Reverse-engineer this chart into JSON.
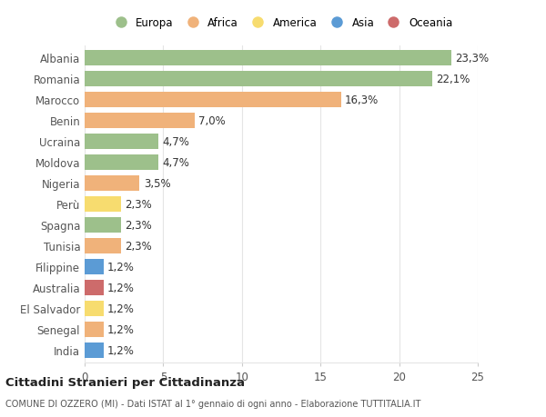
{
  "countries": [
    "Albania",
    "Romania",
    "Marocco",
    "Benin",
    "Ucraina",
    "Moldova",
    "Nigeria",
    "Perù",
    "Spagna",
    "Tunisia",
    "Filippine",
    "Australia",
    "El Salvador",
    "Senegal",
    "India"
  ],
  "values": [
    23.3,
    22.1,
    16.3,
    7.0,
    4.7,
    4.7,
    3.5,
    2.3,
    2.3,
    2.3,
    1.2,
    1.2,
    1.2,
    1.2,
    1.2
  ],
  "labels": [
    "23,3%",
    "22,1%",
    "16,3%",
    "7,0%",
    "4,7%",
    "4,7%",
    "3,5%",
    "2,3%",
    "2,3%",
    "2,3%",
    "1,2%",
    "1,2%",
    "1,2%",
    "1,2%",
    "1,2%"
  ],
  "continents": [
    "Europa",
    "Europa",
    "Africa",
    "Africa",
    "Europa",
    "Europa",
    "Africa",
    "America",
    "Europa",
    "Africa",
    "Asia",
    "Oceania",
    "America",
    "Africa",
    "Asia"
  ],
  "colors": {
    "Europa": "#9dc08b",
    "Africa": "#f0b27a",
    "America": "#f7dc6f",
    "Asia": "#5b9bd5",
    "Oceania": "#cd6b6b"
  },
  "legend_items": [
    "Europa",
    "Africa",
    "America",
    "Asia",
    "Oceania"
  ],
  "legend_colors": [
    "#9dc08b",
    "#f0b27a",
    "#f7dc6f",
    "#5b9bd5",
    "#cd6b6b"
  ],
  "title": "Cittadini Stranieri per Cittadinanza",
  "subtitle": "COMUNE DI OZZERO (MI) - Dati ISTAT al 1° gennaio di ogni anno - Elaborazione TUTTITALIA.IT",
  "xlim": [
    0,
    25
  ],
  "xticks": [
    0,
    5,
    10,
    15,
    20,
    25
  ],
  "bg_color": "#ffffff",
  "grid_color": "#e5e5e5",
  "bar_height": 0.72,
  "label_fontsize": 8.5,
  "ytick_fontsize": 8.5,
  "xtick_fontsize": 8.5
}
